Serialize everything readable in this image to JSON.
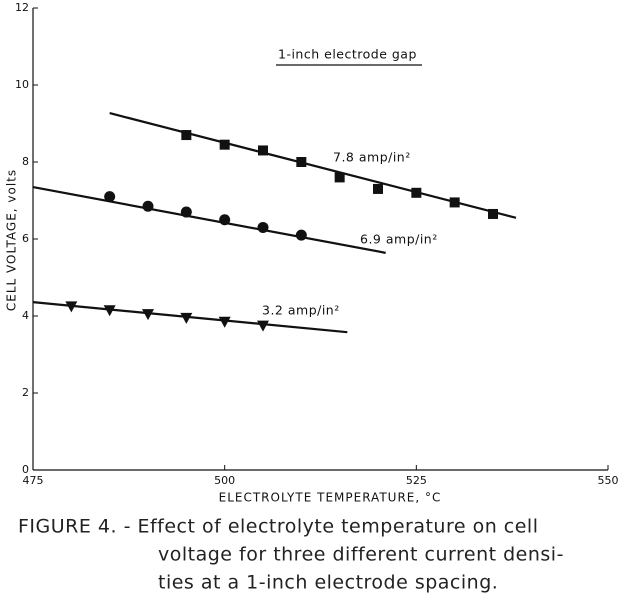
{
  "chart_data": {
    "type": "scatter",
    "x_label": "ELECTROLYTE TEMPERATURE, °C",
    "y_label": "CELL VOLTAGE, volts",
    "annotation": "1-inch electrode gap",
    "caption": [
      "FIGURE 4. - Effect of electrolyte temperature on cell",
      "voltage for three different current densi-",
      "ties at a 1-inch electrode spacing."
    ],
    "xlim": [
      475,
      550
    ],
    "xticks": [
      475,
      500,
      525,
      550
    ],
    "ylim": [
      0,
      12
    ],
    "yticks": [
      0,
      2,
      4,
      6,
      8,
      10,
      12
    ],
    "series": [
      {
        "name": "7.8 amp/in²",
        "color": "#111",
        "marker": "square",
        "x": [
          495,
          500,
          505,
          510,
          515,
          520,
          525,
          530,
          535
        ],
        "values": [
          8.7,
          8.45,
          8.3,
          8.0,
          7.6,
          7.3,
          7.2,
          6.95,
          6.65
        ],
        "fit_x": [
          485,
          538
        ],
        "fit_values": [
          9.27,
          6.55
        ]
      },
      {
        "name": "6.9 amp/in²",
        "color": "#111",
        "marker": "circle",
        "x": [
          485,
          490,
          495,
          500,
          505,
          510
        ],
        "values": [
          7.1,
          6.85,
          6.7,
          6.5,
          6.3,
          6.1
        ],
        "fit_x": [
          475,
          521
        ],
        "fit_values": [
          7.35,
          5.64
        ]
      },
      {
        "name": "3.2 amp/in²",
        "color": "#111",
        "marker": "triangle",
        "x": [
          480,
          485,
          490,
          495,
          500,
          505
        ],
        "values": [
          4.25,
          4.15,
          4.05,
          3.95,
          3.85,
          3.75
        ],
        "fit_x": [
          475,
          516
        ],
        "fit_values": [
          4.36,
          3.58
        ]
      }
    ]
  }
}
